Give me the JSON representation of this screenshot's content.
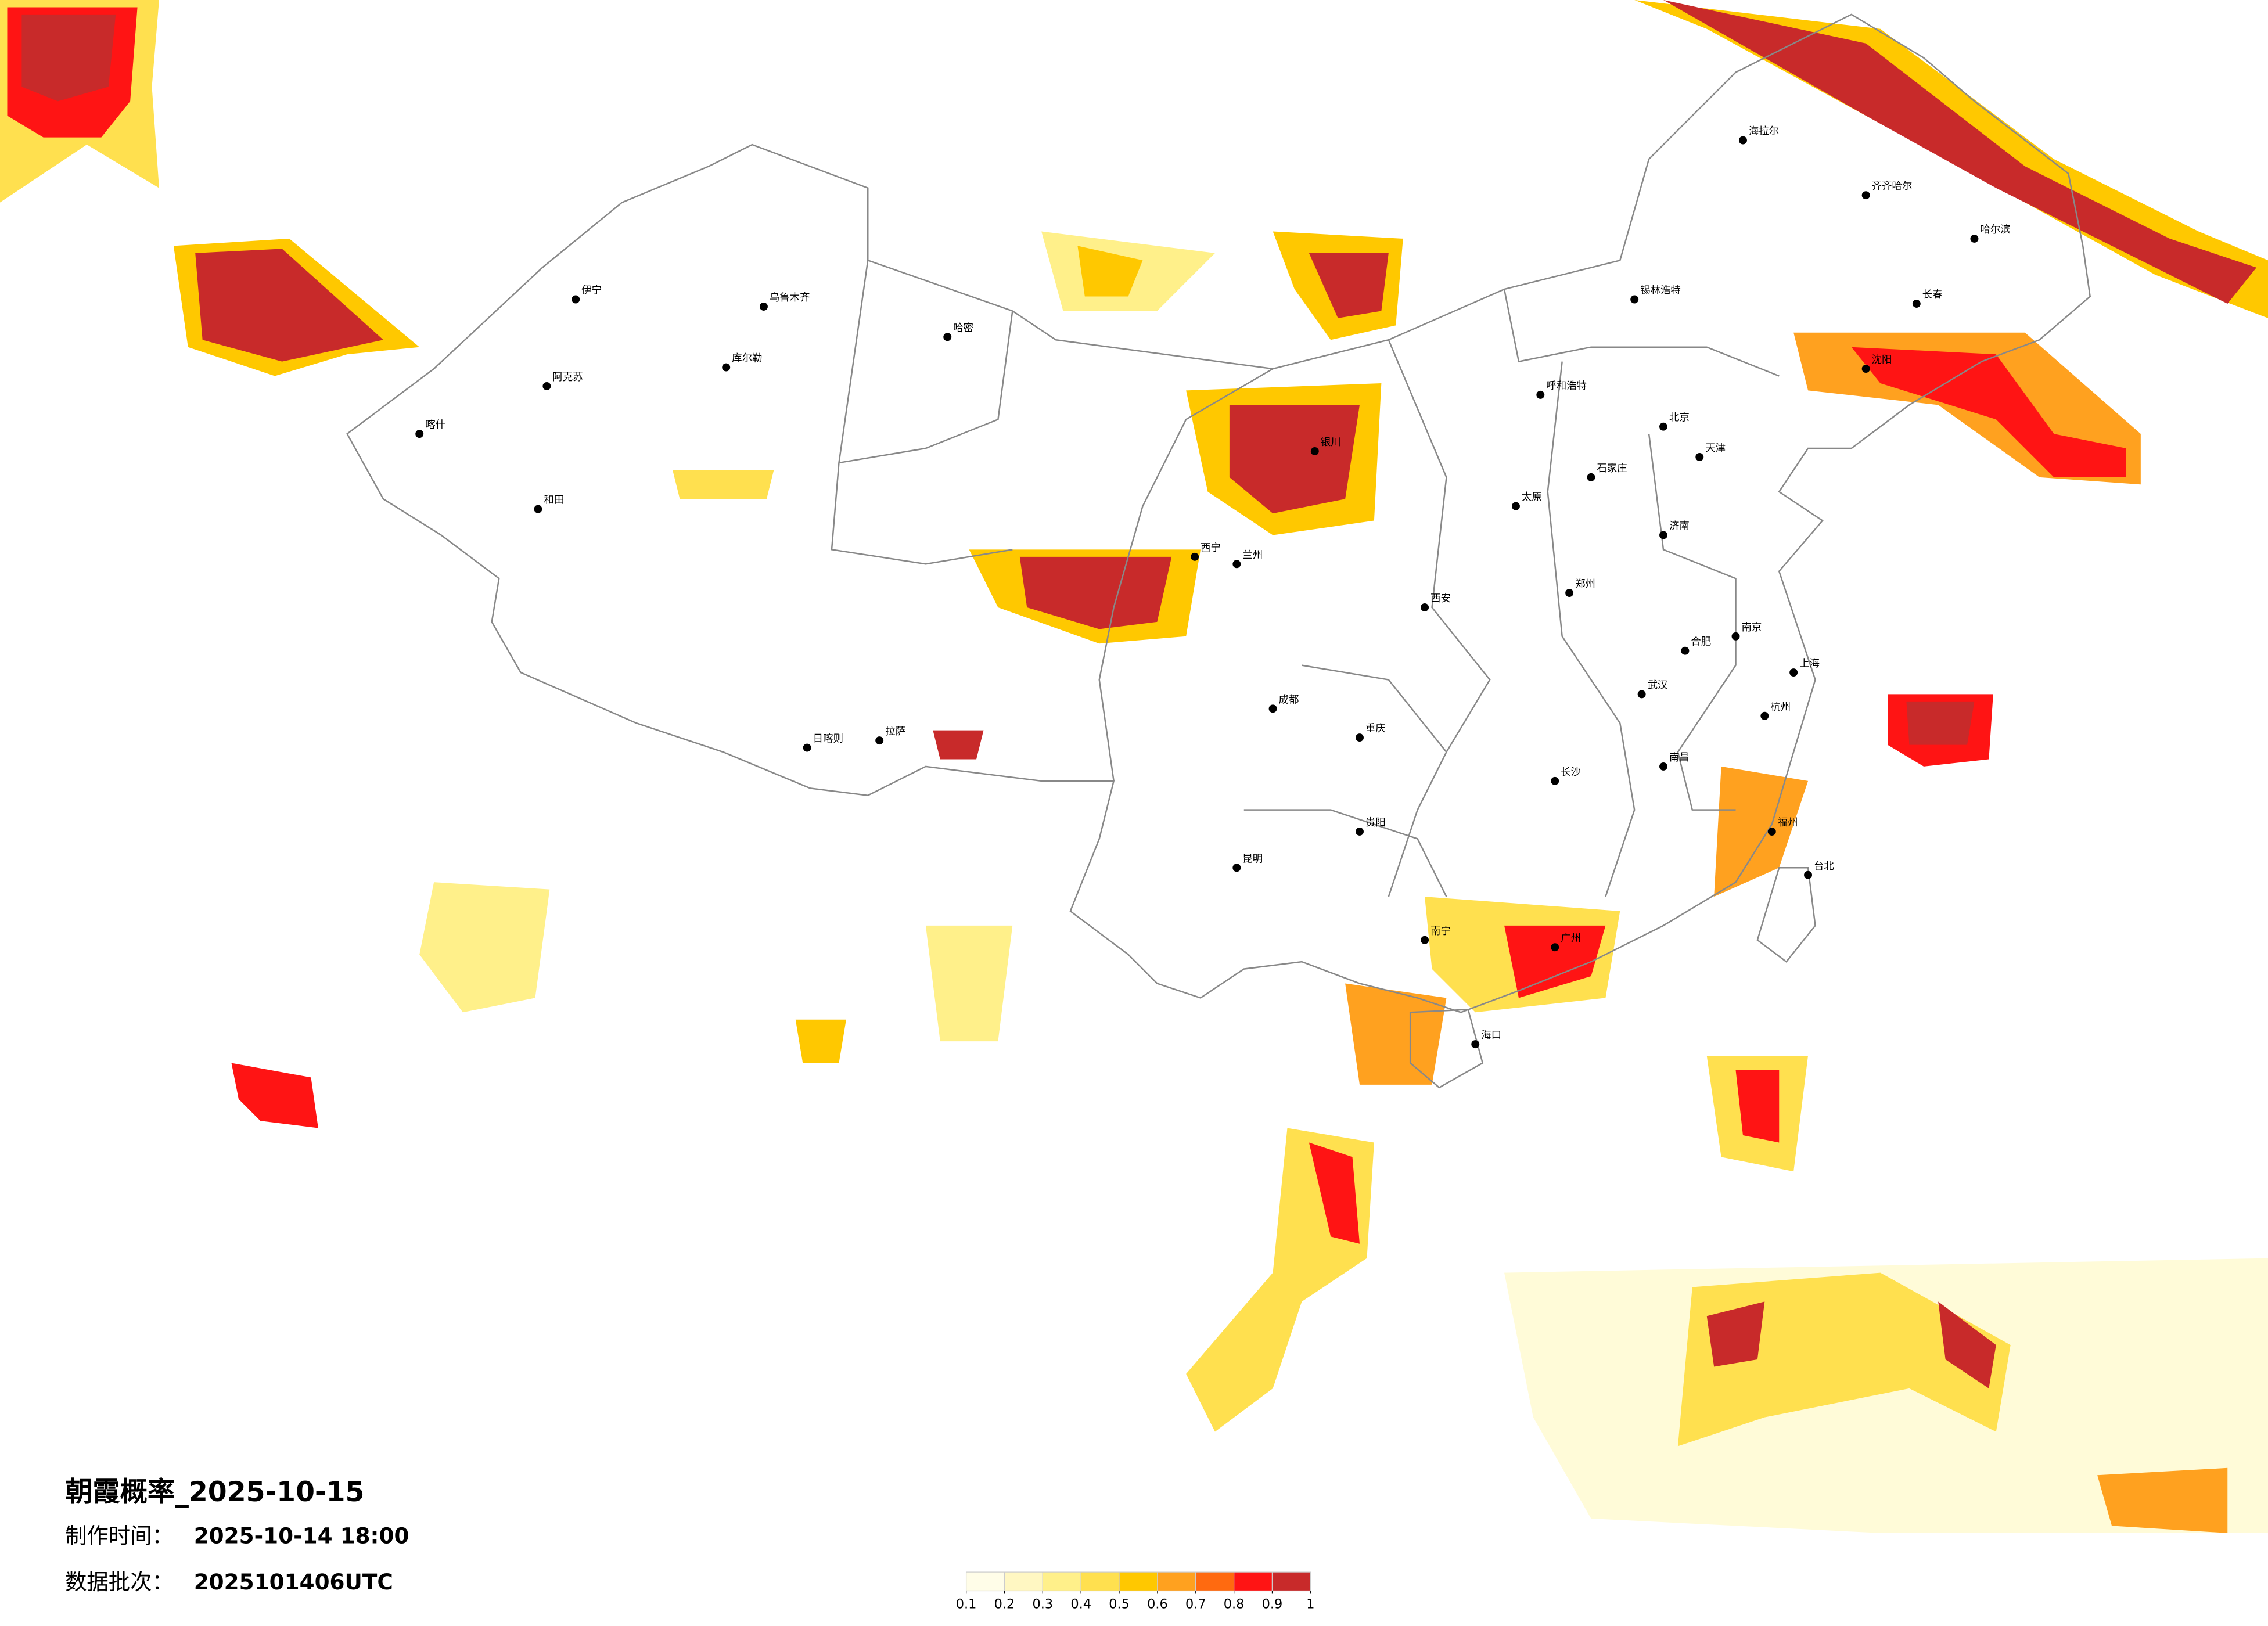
{
  "header": {
    "title": "朝霞概率_2025-10-15",
    "made_label": "制作时间：",
    "made_time": "2025-10-14 18:00",
    "batch_label": "数据批次：",
    "batch": "2025101406UTC"
  },
  "legend": {
    "ticks": [
      0.1,
      0.2,
      0.3,
      0.4,
      0.5,
      0.6,
      0.7,
      0.8,
      0.9,
      1
    ],
    "colors": [
      "#fffde8",
      "#fff7c2",
      "#fff08a",
      "#ffe04f",
      "#ffc800",
      "#ffa11f",
      "#ff6a10",
      "#ff1414",
      "#c82a2a"
    ]
  },
  "cities": [
    "乌鲁木齐",
    "伊宁",
    "阿克苏",
    "喀什",
    "和田",
    "哈密",
    "库尔勒",
    "拉萨",
    "日喀则",
    "西宁",
    "兰州",
    "银川",
    "呼和浩特",
    "北京",
    "天津",
    "石家庄",
    "太原",
    "济南",
    "郑州",
    "西安",
    "成都",
    "重庆",
    "武汉",
    "长沙",
    "南昌",
    "杭州",
    "南京",
    "上海",
    "合肥",
    "福州",
    "广州",
    "南宁",
    "海口",
    "贵阳",
    "昆明",
    "哈尔滨",
    "长春",
    "沈阳",
    "台北",
    "齐齐哈尔",
    "海拉尔",
    "锡林浩特"
  ]
}
